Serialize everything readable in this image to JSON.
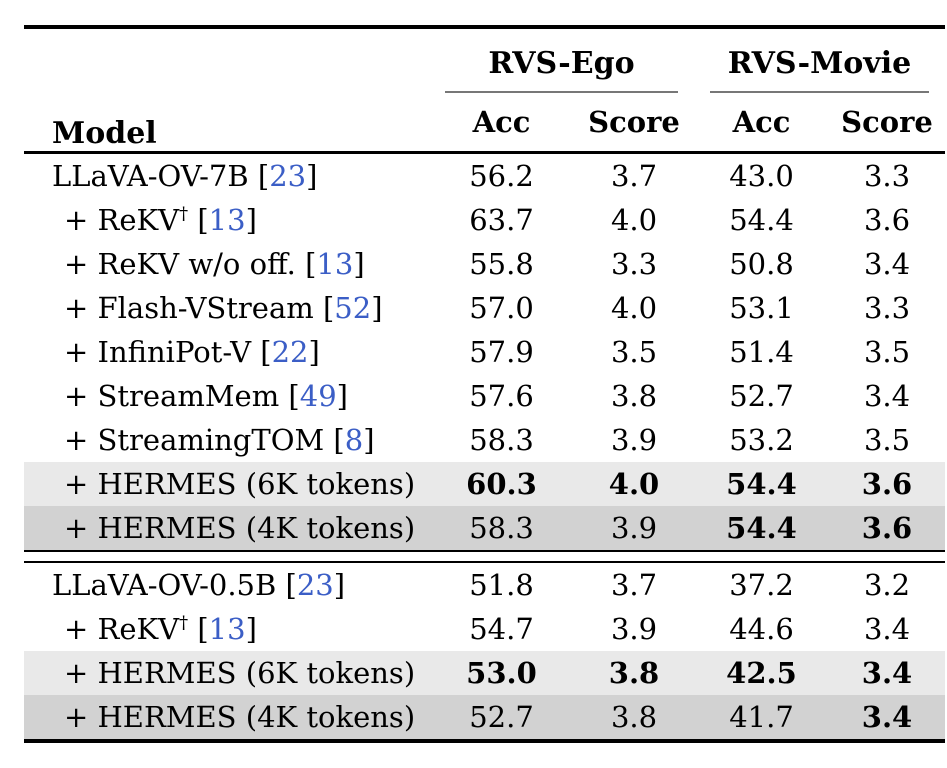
{
  "table": {
    "meta": {
      "cite_open": "[",
      "cite_close": "]"
    },
    "colors": {
      "cite_blue": "#3b5ec6",
      "row_highlight_light": "#e9e9e9",
      "row_highlight_dark": "#d2d2d2",
      "rule_black": "#000000",
      "cmidrule_gray": "#777777"
    },
    "header": {
      "model": "Model",
      "groups": [
        {
          "label": "RVS-Ego",
          "cols": [
            "Acc",
            "Score"
          ]
        },
        {
          "label": "RVS-Movie",
          "cols": [
            "Acc",
            "Score"
          ]
        }
      ]
    },
    "blocks": [
      {
        "rows": [
          {
            "label": "LLaVA-OV-7B",
            "sup": "",
            "cite": "23",
            "indent": false,
            "bg": "",
            "values": [
              "56.2",
              "3.7",
              "43.0",
              "3.3"
            ],
            "bold": [
              false,
              false,
              false,
              false
            ]
          },
          {
            "label": "+ ReKV",
            "sup": "†",
            "cite": "13",
            "indent": true,
            "bg": "",
            "values": [
              "63.7",
              "4.0",
              "54.4",
              "3.6"
            ],
            "bold": [
              false,
              false,
              false,
              false
            ]
          },
          {
            "label": "+ ReKV w/o off.",
            "sup": "",
            "cite": "13",
            "indent": true,
            "bg": "",
            "values": [
              "55.8",
              "3.3",
              "50.8",
              "3.4"
            ],
            "bold": [
              false,
              false,
              false,
              false
            ]
          },
          {
            "label": "+ Flash-VStream",
            "sup": "",
            "cite": "52",
            "indent": true,
            "bg": "",
            "values": [
              "57.0",
              "4.0",
              "53.1",
              "3.3"
            ],
            "bold": [
              false,
              false,
              false,
              false
            ]
          },
          {
            "label": "+ InfiniPot-V",
            "sup": "",
            "cite": "22",
            "indent": true,
            "bg": "",
            "values": [
              "57.9",
              "3.5",
              "51.4",
              "3.5"
            ],
            "bold": [
              false,
              false,
              false,
              false
            ]
          },
          {
            "label": "+ StreamMem",
            "sup": "",
            "cite": "49",
            "indent": true,
            "bg": "",
            "values": [
              "57.6",
              "3.8",
              "52.7",
              "3.4"
            ],
            "bold": [
              false,
              false,
              false,
              false
            ]
          },
          {
            "label": "+ StreamingTOM",
            "sup": "",
            "cite": "8",
            "indent": true,
            "bg": "",
            "values": [
              "58.3",
              "3.9",
              "53.2",
              "3.5"
            ],
            "bold": [
              false,
              false,
              false,
              false
            ]
          },
          {
            "label": "+ HERMES (6K tokens)",
            "sup": "",
            "cite": "",
            "indent": true,
            "bg": "light",
            "values": [
              "60.3",
              "4.0",
              "54.4",
              "3.6"
            ],
            "bold": [
              true,
              true,
              true,
              true
            ]
          },
          {
            "label": "+ HERMES (4K tokens)",
            "sup": "",
            "cite": "",
            "indent": true,
            "bg": "dark",
            "values": [
              "58.3",
              "3.9",
              "54.4",
              "3.6"
            ],
            "bold": [
              false,
              false,
              true,
              true
            ]
          }
        ]
      },
      {
        "rows": [
          {
            "label": "LLaVA-OV-0.5B",
            "sup": "",
            "cite": "23",
            "indent": false,
            "bg": "",
            "values": [
              "51.8",
              "3.7",
              "37.2",
              "3.2"
            ],
            "bold": [
              false,
              false,
              false,
              false
            ]
          },
          {
            "label": "+ ReKV",
            "sup": "†",
            "cite": "13",
            "indent": true,
            "bg": "",
            "values": [
              "54.7",
              "3.9",
              "44.6",
              "3.4"
            ],
            "bold": [
              false,
              false,
              false,
              false
            ]
          },
          {
            "label": "+ HERMES (6K tokens)",
            "sup": "",
            "cite": "",
            "indent": true,
            "bg": "light",
            "values": [
              "53.0",
              "3.8",
              "42.5",
              "3.4"
            ],
            "bold": [
              true,
              true,
              true,
              true
            ]
          },
          {
            "label": "+ HERMES (4K tokens)",
            "sup": "",
            "cite": "",
            "indent": true,
            "bg": "dark",
            "values": [
              "52.7",
              "3.8",
              "41.7",
              "3.4"
            ],
            "bold": [
              false,
              false,
              false,
              true
            ]
          }
        ]
      }
    ]
  }
}
